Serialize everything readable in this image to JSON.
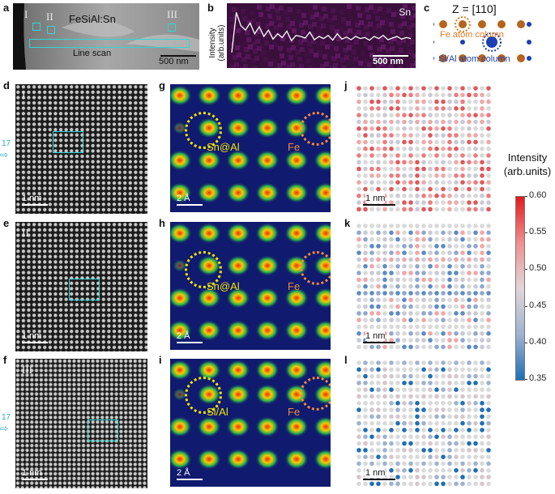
{
  "panels": {
    "a": {
      "letter": "a",
      "title": "FeSiAl:Sn",
      "line_scan": "Line scan",
      "scale": "500 nm",
      "regions": [
        "I",
        "II",
        "III"
      ]
    },
    "b": {
      "letter": "b",
      "element": "Sn",
      "ylabel": "Intensity\n(arb.units)",
      "scale": "500 nm"
    },
    "c": {
      "letter": "c",
      "zone_axis": "Z = [110]",
      "fe_label": "Fe atom column",
      "sial_label": "Si/Al atom column",
      "fe_color": "#c46a1e",
      "sial_color": "#1d3fb3"
    },
    "d": {
      "letter": "d",
      "region": "I",
      "scale": "1 nm",
      "marker": "17"
    },
    "e": {
      "letter": "e",
      "region": "II",
      "scale": "1 nm"
    },
    "f": {
      "letter": "f",
      "region": "III",
      "scale": "1 nm",
      "marker": "17"
    },
    "g": {
      "letter": "g",
      "site_label": "Sn@Al",
      "fe_label": "Fe",
      "scale": "2 Å"
    },
    "h": {
      "letter": "h",
      "site_label": "Sn@Al",
      "fe_label": "Fe",
      "scale": "2 Å"
    },
    "i": {
      "letter": "i",
      "site_label": "Si/Al",
      "fe_label": "Fe",
      "scale": "2 Å"
    },
    "j": {
      "letter": "j",
      "scale": "1 nm"
    },
    "k": {
      "letter": "k",
      "scale": "1 nm"
    },
    "l": {
      "letter": "l",
      "scale": "1 nm"
    }
  },
  "colorbar": {
    "title": "Intensity\n(arb.units)",
    "ticks": [
      "0.60",
      "0.55",
      "0.50",
      "0.45",
      "0.40",
      "0.35"
    ],
    "min": 0.35,
    "max": 0.6,
    "colors": {
      "high": "#e41a1c",
      "mid": "#d9d9d9",
      "low": "#1f6fb5"
    }
  },
  "chart_data": {
    "type": "line",
    "title": "",
    "xlabel": "",
    "ylabel": "Intensity (arb.units)",
    "series": [
      {
        "name": "Sn",
        "values": [
          0.2,
          0.95,
          0.7,
          0.62,
          0.75,
          0.55,
          0.68,
          0.5,
          0.62,
          0.45,
          0.55,
          0.48,
          0.6,
          0.42,
          0.52,
          0.5,
          0.47,
          0.58,
          0.44,
          0.5,
          0.46,
          0.52,
          0.43,
          0.55,
          0.45,
          0.49,
          0.44,
          0.5,
          0.46,
          0.48,
          0.43,
          0.5,
          0.46,
          0.52,
          0.44,
          0.47,
          0.5,
          0.45,
          0.48,
          0.46
        ]
      }
    ]
  }
}
